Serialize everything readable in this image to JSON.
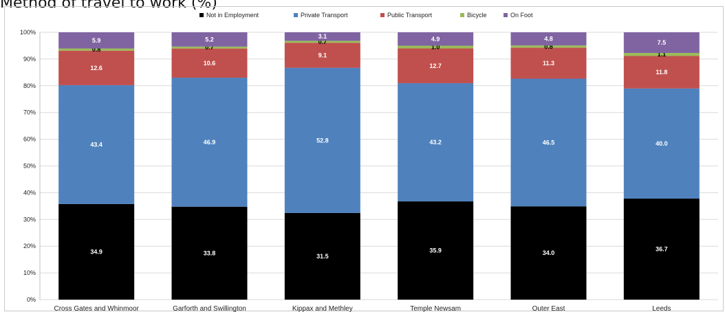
{
  "title": "Method of travel to work (%)",
  "chart_data": {
    "type": "bar",
    "stacked": true,
    "title": "Method of travel to work (%)",
    "categories": [
      "Cross Gates and Whinmoor",
      "Garforth and Swillington",
      "Kippax and Methley",
      "Temple Newsam",
      "Outer East",
      "Leeds"
    ],
    "series": [
      {
        "name": "Not in Employment",
        "color": "#000000",
        "label_color": "#ffffff",
        "values": [
          34.9,
          33.8,
          31.5,
          35.9,
          34.0,
          36.7
        ]
      },
      {
        "name": "Private Transport",
        "color": "#4f81bd",
        "label_color": "#ffffff",
        "values": [
          43.4,
          46.9,
          52.8,
          43.2,
          46.5,
          40.0
        ]
      },
      {
        "name": "Public Transport",
        "color": "#c0504d",
        "label_color": "#ffffff",
        "values": [
          12.6,
          10.6,
          9.1,
          12.7,
          11.3,
          11.8
        ]
      },
      {
        "name": "Bicycle",
        "color": "#9bbb59",
        "label_color": "#000000",
        "values": [
          0.8,
          0.7,
          0.7,
          1.0,
          0.8,
          1.1
        ]
      },
      {
        "name": "On Foot",
        "color": "#8064a2",
        "label_color": "#ffffff",
        "values": [
          5.9,
          5.2,
          3.1,
          4.9,
          4.8,
          7.5
        ]
      }
    ],
    "y_ticks": [
      "0%",
      "10%",
      "20%",
      "30%",
      "40%",
      "50%",
      "60%",
      "70%",
      "80%",
      "90%",
      "100%"
    ],
    "ylim": [
      0,
      100
    ],
    "grid": true,
    "legend_position": "top"
  }
}
